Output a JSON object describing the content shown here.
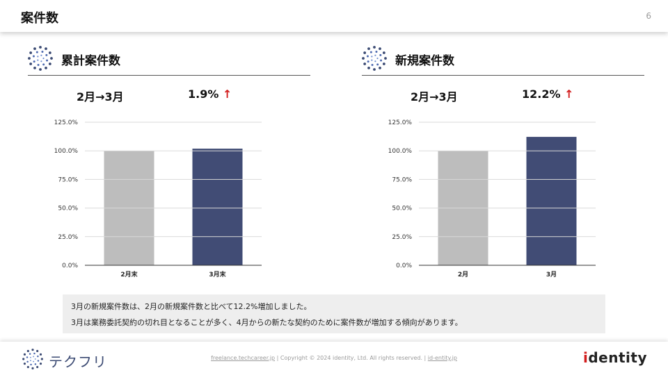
{
  "header": {
    "title": "案件数",
    "page_number": "6"
  },
  "panels": [
    {
      "title": "累計案件数",
      "period": "2月→3月",
      "change": "1.9%",
      "arrow": "↑",
      "chart_data": {
        "type": "bar",
        "categories": [
          "2月末",
          "3月末"
        ],
        "values": [
          100.0,
          101.9
        ],
        "colors": [
          "#bdbdbd",
          "#414c75"
        ],
        "ylim": [
          0,
          125
        ],
        "yticks": [
          "0.0%",
          "25.0%",
          "50.0%",
          "75.0%",
          "100.0%",
          "125.0%"
        ],
        "grid": true
      }
    },
    {
      "title": "新規案件数",
      "period": "2月→3月",
      "change": "12.2%",
      "arrow": "↑",
      "chart_data": {
        "type": "bar",
        "categories": [
          "2月",
          "3月"
        ],
        "values": [
          100.0,
          112.2
        ],
        "colors": [
          "#bdbdbd",
          "#414c75"
        ],
        "ylim": [
          0,
          125
        ],
        "yticks": [
          "0.0%",
          "25.0%",
          "50.0%",
          "75.0%",
          "100.0%",
          "125.0%"
        ],
        "grid": true
      }
    }
  ],
  "note": {
    "line1": "3月の新規案件数は、2月の新規案件数と比べて12.2%増加しました。",
    "line2": "3月は業務委託契約の切れ目となることが多く、4月からの新たな契約のために案件数が増加する傾向があります。"
  },
  "footer": {
    "logo_text": "テクフリ",
    "link1": "freelance.techcareer.jp",
    "sep1": "|",
    "copyright": "Copyright © 2024 identity, Ltd. All rights reserved.",
    "sep2": "|",
    "link2": "id-entity.jp",
    "brand_first": "i",
    "brand_rest": "dentity"
  },
  "icons": {
    "panel_icon": "dots-circle-icon",
    "logo_icon": "dots-circle-icon"
  },
  "accent_color": "#414c75",
  "up_color": "#d21c1c"
}
